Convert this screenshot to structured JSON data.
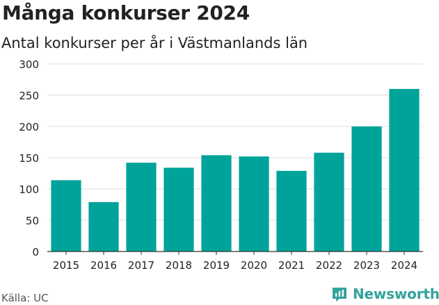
{
  "header": {
    "title": "Många konkurser 2024",
    "subtitle": "Antal konkurser per år i Västmanlands län"
  },
  "footer": {
    "source": "Källa: UC",
    "brand": "Newsworthy"
  },
  "colors": {
    "bar": "#00a39a",
    "brand": "#33a39b",
    "grid": "#dddddd",
    "axis": "#333333"
  },
  "chart_data": {
    "type": "bar",
    "categories": [
      "2015",
      "2016",
      "2017",
      "2018",
      "2019",
      "2020",
      "2021",
      "2022",
      "2023",
      "2024"
    ],
    "values": [
      114,
      79,
      142,
      134,
      154,
      152,
      129,
      158,
      200,
      260
    ],
    "yticks": [
      0,
      50,
      100,
      150,
      200,
      250,
      300
    ],
    "ylim": [
      0,
      300
    ],
    "grid": true
  }
}
